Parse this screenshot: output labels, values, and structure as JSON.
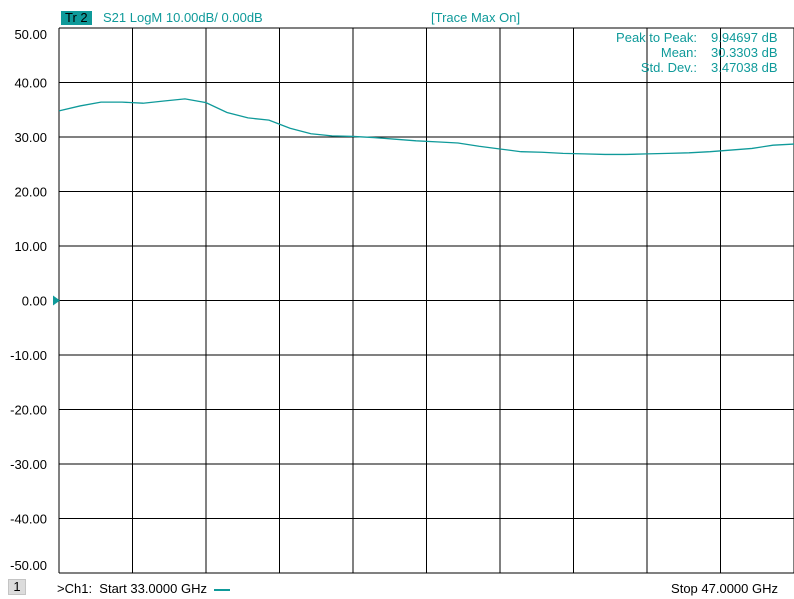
{
  "header": {
    "trace_badge": "Tr 2",
    "trace_info": "S21 LogM 10.00dB/  0.00dB",
    "trace_max": "[Trace Max On]"
  },
  "stats": [
    {
      "label": "Peak to Peak:",
      "value": "9.94697 dB"
    },
    {
      "label": "Mean:",
      "value": "30.3303 dB"
    },
    {
      "label": "Std. Dev.:",
      "value": "3.47038 dB"
    }
  ],
  "footer": {
    "channel_number": "1",
    "start_prefix": ">Ch1:",
    "start_text": "Start  33.0000 GHz",
    "stop_text": "Stop  47.0000 GHz"
  },
  "colors": {
    "trace": "#0f9a9a",
    "grid": "#000000",
    "background": "#ffffff"
  },
  "chart_data": {
    "type": "line",
    "title": "",
    "xlabel": "",
    "ylabel": "",
    "xlim": [
      33.0,
      47.0
    ],
    "ylim": [
      -50,
      50
    ],
    "ytick_values": [
      50,
      40,
      30,
      20,
      10,
      0,
      -10,
      -20,
      -30,
      -40,
      -50
    ],
    "ytick_labels": [
      "50.00",
      "40.00",
      "30.00",
      "20.00",
      "10.00",
      "0.00",
      "-10.00",
      "-20.00",
      "-30.00",
      "-40.00",
      "-50.00"
    ],
    "grid": true,
    "reference_level": 0,
    "series": [
      {
        "x": [
          33.0,
          33.4,
          33.8,
          34.2,
          34.6,
          35.0,
          35.4,
          35.8,
          36.2,
          36.6,
          37.0,
          37.4,
          37.8,
          38.2,
          38.6,
          39.0,
          39.4,
          39.8,
          40.2,
          40.6,
          41.0,
          41.4,
          41.8,
          42.2,
          42.6,
          43.0,
          43.4,
          43.8,
          44.2,
          44.6,
          45.0,
          45.4,
          45.8,
          46.2,
          46.6,
          47.0
        ],
        "y": [
          34.8,
          35.7,
          36.4,
          36.4,
          36.2,
          36.6,
          37.0,
          36.3,
          34.5,
          33.5,
          33.1,
          31.6,
          30.6,
          30.2,
          30.1,
          29.9,
          29.6,
          29.3,
          29.1,
          28.9,
          28.3,
          27.8,
          27.3,
          27.2,
          27.0,
          26.9,
          26.8,
          26.8,
          26.9,
          27.0,
          27.1,
          27.3,
          27.6,
          27.9,
          28.5,
          28.7
        ]
      }
    ]
  }
}
